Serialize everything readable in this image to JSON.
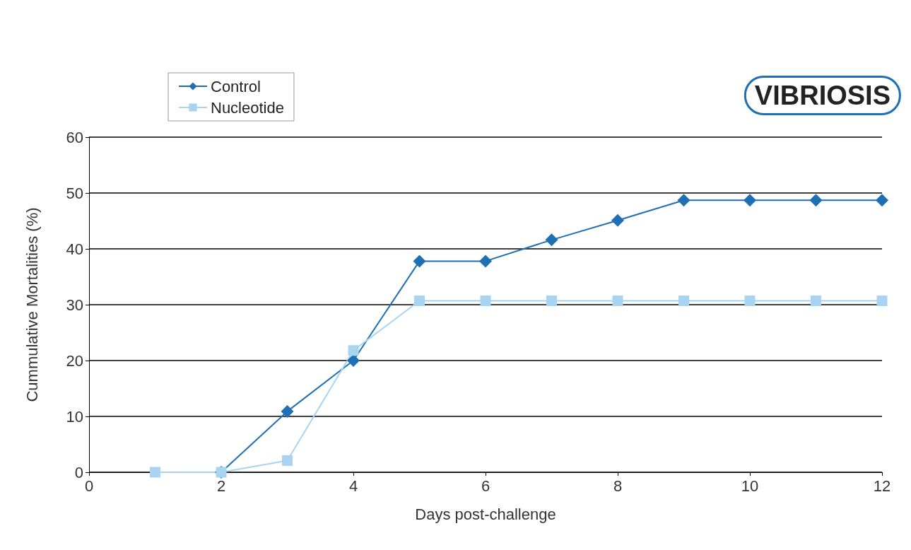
{
  "chart_data": {
    "type": "line",
    "title": "VIBRIOSIS",
    "xlabel": "Days post-challenge",
    "ylabel": "Cummulative Mortalities (%)",
    "xlim": [
      0,
      12
    ],
    "xticks": [
      0,
      2,
      4,
      6,
      8,
      10,
      12
    ],
    "ylim": [
      0,
      60
    ],
    "yticks": [
      0,
      10,
      20,
      30,
      40,
      50,
      60
    ],
    "grid": "y",
    "legend": "top left",
    "series": [
      {
        "name": "Control",
        "color": "#1f6fb5",
        "marker": "diamond",
        "x": [
          2,
          3,
          4,
          5,
          6,
          7,
          8,
          9,
          10,
          11,
          12
        ],
        "values": [
          0,
          10.9,
          20,
          37.8,
          37.8,
          41.6,
          45.1,
          48.7,
          48.7,
          48.7,
          48.7
        ]
      },
      {
        "name": "Nucleotide",
        "color": "#a8d4f2",
        "marker": "square",
        "x": [
          1,
          2,
          3,
          4,
          5,
          6,
          7,
          8,
          9,
          10,
          11,
          12
        ],
        "values": [
          0,
          0,
          2.1,
          21.8,
          30.7,
          30.7,
          30.7,
          30.7,
          30.7,
          30.7,
          30.7,
          30.7
        ]
      }
    ]
  }
}
